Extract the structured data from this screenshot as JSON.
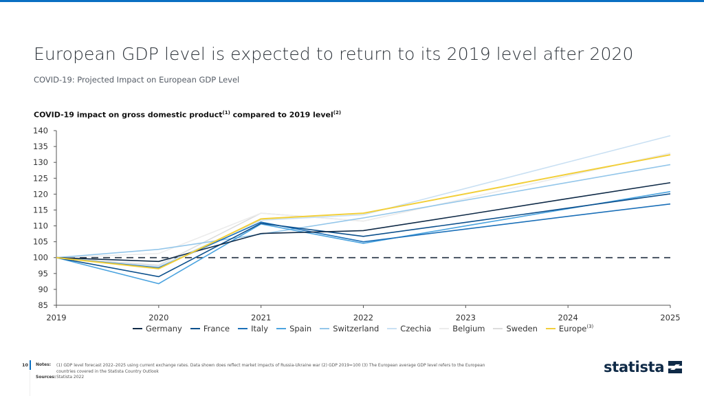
{
  "header": {
    "title": "European GDP level is expected to return to its 2019 level after 2020",
    "subtitle": "COVID-19: Projected Impact on European GDP Level"
  },
  "chart_heading": {
    "text_1": "COVID-19 impact on gross domestic product",
    "sup_1": "(1)",
    "text_2": " compared to 2019 level",
    "sup_2": "(2)"
  },
  "chart_data": {
    "type": "line",
    "title": "COVID-19 impact on gross domestic product(1) compared to 2019 level(2)",
    "xlabel": "",
    "ylabel": "",
    "x": [
      "2019",
      "2020",
      "2021",
      "2022",
      "2023",
      "2024",
      "2025"
    ],
    "ylim": [
      85,
      140
    ],
    "yticks": [
      85,
      90,
      95,
      100,
      105,
      110,
      115,
      120,
      125,
      130,
      135,
      140
    ],
    "grid": false,
    "reference_line": {
      "value": 100,
      "style": "dashed",
      "color": "#2d3a4a"
    },
    "legend_position": "bottom",
    "series": [
      {
        "name": "Germany",
        "color": "#0f2a47",
        "values": [
          100,
          98.8,
          107.6,
          108.5,
          113.5,
          118.6,
          123.6
        ]
      },
      {
        "name": "France",
        "color": "#0b4f8c",
        "values": [
          100,
          94.0,
          110.8,
          106.7,
          111.1,
          115.6,
          120.1
        ]
      },
      {
        "name": "Italy",
        "color": "#1a6fb8",
        "values": [
          100,
          96.8,
          111.2,
          105.0,
          109.0,
          113.0,
          116.9
        ]
      },
      {
        "name": "Spain",
        "color": "#4aa3df",
        "values": [
          100,
          91.8,
          110.6,
          104.5,
          110.0,
          115.4,
          120.8
        ]
      },
      {
        "name": "Switzerland",
        "color": "#93c6ea",
        "values": [
          100,
          102.6,
          107.4,
          112.5,
          118.1,
          123.7,
          129.3
        ]
      },
      {
        "name": "Czechia",
        "color": "#c9e0f3",
        "values": [
          100,
          97.2,
          111.8,
          113.5,
          121.8,
          130.1,
          138.4
        ]
      },
      {
        "name": "Belgium",
        "color": "#ececec",
        "values": [
          100,
          101.3,
          114.0,
          111.5,
          118.6,
          125.8,
          132.9
        ]
      },
      {
        "name": "Sweden",
        "color": "#dcdcdc",
        "values": [
          100,
          97.6,
          114.0,
          111.5,
          118.6,
          125.8,
          132.9
        ]
      },
      {
        "name": "Europe",
        "sup": "(3)",
        "color": "#f2cf3a",
        "values": [
          100,
          96.5,
          112.2,
          114.0,
          120.1,
          126.3,
          132.4
        ]
      }
    ]
  },
  "footer": {
    "page_number": "10",
    "notes_label": "Notes:",
    "notes_text": "(1) GDP level forecast 2022–2025 using current exchange rates. Data shown does reflect market impacts of Russia-Ukraine war  (2) GDP 2019=100 (3) The European average GDP level refers to the European countries covered in the Statista Country Outlook",
    "sources_label": "Sources:",
    "sources_text": "Statista 2022",
    "logo_text": "statista"
  },
  "colors": {
    "accent": "#0a6fc2",
    "brand_dark": "#0f2a47"
  }
}
